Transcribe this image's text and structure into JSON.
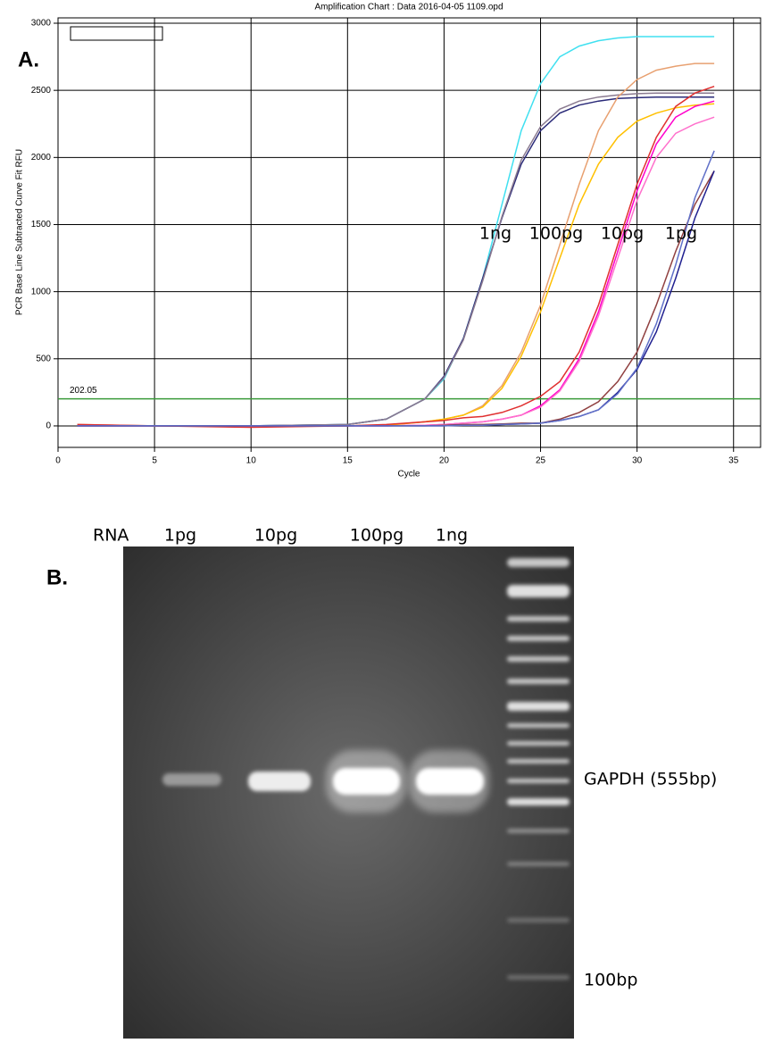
{
  "chart_data": {
    "type": "line",
    "title": "Amplification Chart : Data 2016-04-05 1109.opd",
    "panel_label": "A.",
    "x_label": "Cycle",
    "y_label": "PCR Base Line Subtracted Curve Fit RFU",
    "curve_labels": [
      "1ng",
      "100pg",
      "10pg",
      "1pg"
    ],
    "threshold": 202.05,
    "threshold_color": "#3a9a3a",
    "grid": true,
    "xlim": [
      0,
      36.4
    ],
    "ylim": [
      -160,
      3040
    ],
    "xticks": [
      0,
      5,
      10,
      15,
      20,
      25,
      30,
      35
    ],
    "yticks": [
      0,
      500,
      1000,
      1500,
      2000,
      2500,
      3000
    ],
    "x": [
      1,
      5,
      10,
      15,
      17,
      19,
      20,
      21,
      22,
      23,
      24,
      25,
      26,
      27,
      28,
      29,
      30,
      31,
      32,
      33,
      34
    ],
    "series": [
      {
        "color": "#40e0f0",
        "values": [
          5,
          0,
          0,
          10,
          50,
          200,
          350,
          650,
          1100,
          1650,
          2200,
          2550,
          2750,
          2830,
          2870,
          2890,
          2900,
          2900,
          2900,
          2900,
          2900
        ]
      },
      {
        "color": "#2a2a78",
        "values": [
          0,
          0,
          0,
          10,
          50,
          200,
          370,
          650,
          1100,
          1550,
          1950,
          2200,
          2330,
          2390,
          2420,
          2440,
          2445,
          2450,
          2450,
          2450,
          2450
        ]
      },
      {
        "color": "#8a7a90",
        "values": [
          0,
          0,
          0,
          10,
          50,
          200,
          360,
          640,
          1080,
          1560,
          1980,
          2230,
          2360,
          2420,
          2450,
          2465,
          2475,
          2480,
          2480,
          2480,
          2480
        ]
      },
      {
        "color": "#e8a070",
        "values": [
          10,
          0,
          0,
          0,
          5,
          30,
          50,
          80,
          150,
          300,
          550,
          900,
          1350,
          1800,
          2200,
          2450,
          2580,
          2650,
          2680,
          2700,
          2700
        ]
      },
      {
        "color": "#ffc000",
        "values": [
          0,
          0,
          0,
          0,
          5,
          30,
          50,
          80,
          140,
          280,
          520,
          850,
          1250,
          1650,
          1950,
          2150,
          2270,
          2330,
          2370,
          2390,
          2400
        ]
      },
      {
        "color": "#ff00cc",
        "values": [
          0,
          0,
          0,
          0,
          0,
          5,
          10,
          20,
          30,
          50,
          80,
          150,
          270,
          500,
          850,
          1300,
          1750,
          2100,
          2300,
          2380,
          2420
        ]
      },
      {
        "color": "#ff70cc",
        "values": [
          0,
          0,
          0,
          0,
          0,
          5,
          10,
          20,
          30,
          50,
          80,
          140,
          260,
          480,
          820,
          1250,
          1680,
          2000,
          2180,
          2250,
          2300
        ]
      },
      {
        "color": "#e03030",
        "values": [
          10,
          0,
          -10,
          0,
          10,
          30,
          40,
          60,
          70,
          100,
          150,
          220,
          330,
          550,
          900,
          1350,
          1800,
          2150,
          2380,
          2480,
          2530
        ]
      },
      {
        "color": "#904040",
        "values": [
          0,
          0,
          0,
          0,
          0,
          0,
          5,
          10,
          10,
          15,
          20,
          20,
          50,
          100,
          180,
          330,
          550,
          900,
          1300,
          1650,
          1900
        ]
      },
      {
        "color": "#202090",
        "values": [
          0,
          0,
          0,
          0,
          0,
          0,
          0,
          5,
          5,
          10,
          15,
          20,
          40,
          70,
          120,
          250,
          420,
          700,
          1100,
          1550,
          1900
        ]
      },
      {
        "color": "#6070c8",
        "values": [
          0,
          0,
          0,
          0,
          0,
          0,
          0,
          5,
          5,
          10,
          15,
          20,
          40,
          70,
          120,
          240,
          430,
          760,
          1200,
          1700,
          2050
        ]
      }
    ]
  },
  "panel_b": {
    "panel_label": "B.",
    "row_label": "RNA",
    "lanes": [
      "1pg",
      "10pg",
      "100pg",
      "1ng"
    ],
    "band_label": "GAPDH (555bp)",
    "marker_label": "100bp"
  }
}
